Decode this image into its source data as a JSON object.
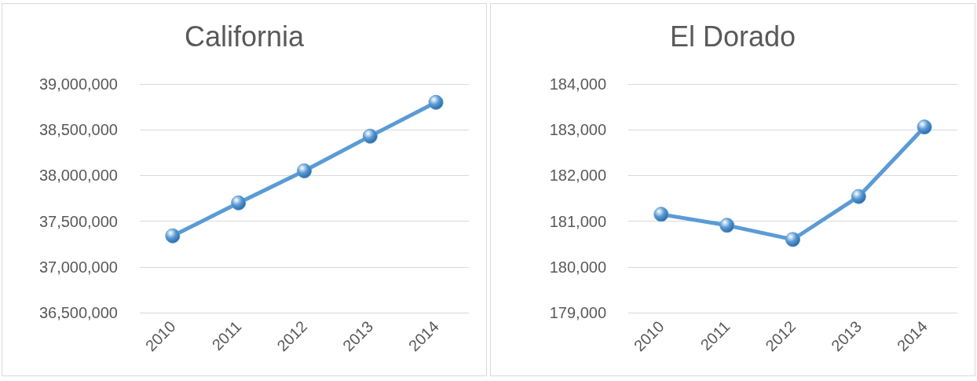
{
  "chart_data": [
    {
      "type": "line",
      "title": "California",
      "categories": [
        "2010",
        "2011",
        "2012",
        "2013",
        "2014"
      ],
      "series": [
        {
          "color": "#5b9bd5",
          "values": [
            37340000,
            37700000,
            38050000,
            38430000,
            38800000
          ]
        }
      ],
      "ylim": [
        36500000,
        39000000
      ],
      "yticks": [
        {
          "value": 36500000,
          "label": "36,500,000"
        },
        {
          "value": 37000000,
          "label": "37,000,000"
        },
        {
          "value": 37500000,
          "label": "37,500,000"
        },
        {
          "value": 38000000,
          "label": "38,000,000"
        },
        {
          "value": 38500000,
          "label": "38,500,000"
        },
        {
          "value": 39000000,
          "label": "39,000,000"
        }
      ],
      "grid": "y",
      "marker": "circle"
    },
    {
      "type": "line",
      "title": "El Dorado",
      "categories": [
        "2010",
        "2011",
        "2012",
        "2013",
        "2014"
      ],
      "series": [
        {
          "color": "#5b9bd5",
          "values": [
            181150,
            180910,
            180600,
            181540,
            183060
          ]
        }
      ],
      "ylim": [
        179000,
        184000
      ],
      "yticks": [
        {
          "value": 179000,
          "label": "179,000"
        },
        {
          "value": 180000,
          "label": "180,000"
        },
        {
          "value": 181000,
          "label": "181,000"
        },
        {
          "value": 182000,
          "label": "182,000"
        },
        {
          "value": 183000,
          "label": "183,000"
        },
        {
          "value": 184000,
          "label": "184,000"
        }
      ],
      "grid": "y",
      "marker": "circle"
    }
  ]
}
